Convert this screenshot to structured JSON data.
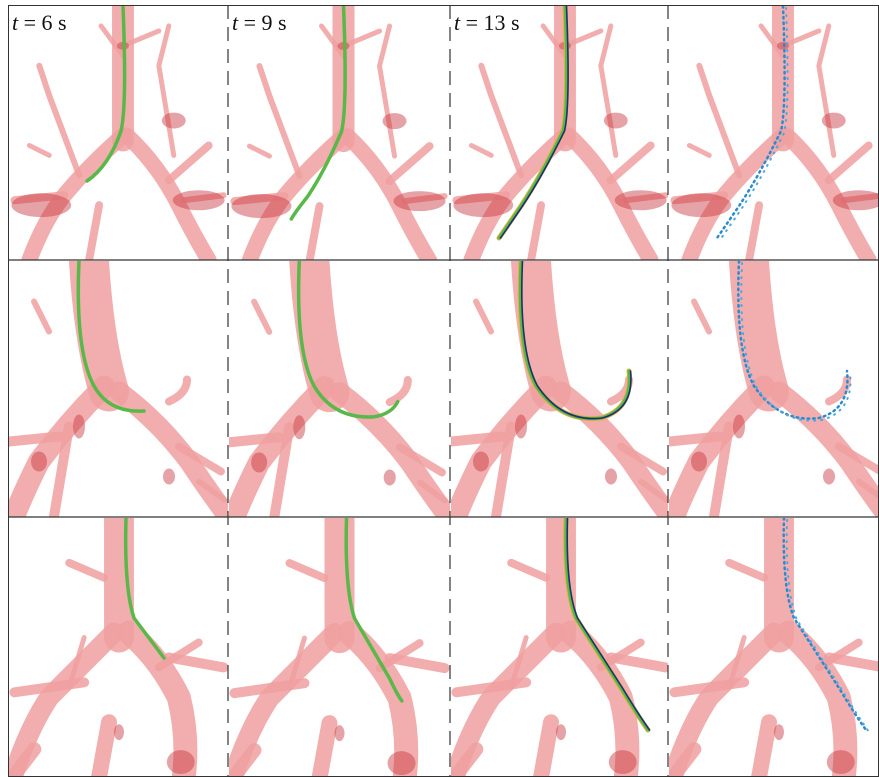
{
  "time_labels": [
    {
      "symbol": "t",
      "rest": "= 6 s"
    },
    {
      "symbol": "t",
      "rest": "= 9 s"
    },
    {
      "symbol": "t",
      "rest": "= 13 s"
    }
  ]
}
